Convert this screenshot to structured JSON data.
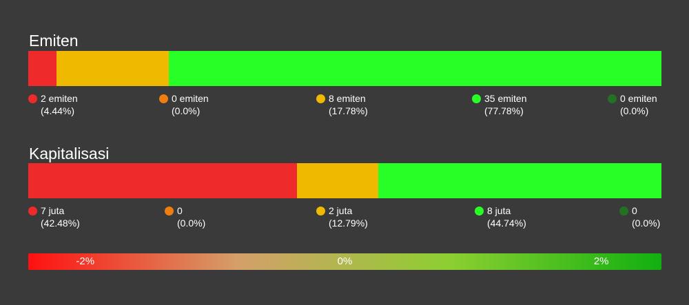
{
  "chart_data": [
    {
      "type": "bar",
      "orientation": "horizontal-stacked",
      "title": "Emiten",
      "segments": [
        {
          "label": "2 emiten",
          "percent_label": "(4.44%)",
          "value": 2,
          "percent": 4.44,
          "color": "#ee2a2a"
        },
        {
          "label": "0 emiten",
          "percent_label": "(0.0%)",
          "value": 0,
          "percent": 0.0,
          "color": "#f07d10"
        },
        {
          "label": "8 emiten",
          "percent_label": "(17.78%)",
          "value": 8,
          "percent": 17.78,
          "color": "#efb900"
        },
        {
          "label": "35 emiten",
          "percent_label": "(77.78%)",
          "value": 35,
          "percent": 77.78,
          "color": "#27ff27"
        },
        {
          "label": "0 emiten",
          "percent_label": "(0.0%)",
          "value": 0,
          "percent": 0.0,
          "color": "#237123"
        }
      ]
    },
    {
      "type": "bar",
      "orientation": "horizontal-stacked",
      "title": "Kapitalisasi",
      "segments": [
        {
          "label": "7 juta",
          "percent_label": "(42.48%)",
          "value": 7,
          "percent": 42.48,
          "color": "#ee2a2a"
        },
        {
          "label": "0",
          "percent_label": "(0.0%)",
          "value": 0,
          "percent": 0.0,
          "color": "#f07d10"
        },
        {
          "label": "2 juta",
          "percent_label": "(12.79%)",
          "value": 2,
          "percent": 12.79,
          "color": "#efb900"
        },
        {
          "label": "8 juta",
          "percent_label": "(44.74%)",
          "value": 8,
          "percent": 44.74,
          "color": "#27ff27"
        },
        {
          "label": "0",
          "percent_label": "(0.0%)",
          "value": 0,
          "percent": 0.0,
          "color": "#237123"
        }
      ]
    }
  ],
  "color_scale": {
    "labels": [
      "-2%",
      "0%",
      "2%"
    ],
    "stops": [
      "#ff1010",
      "#d4a06a",
      "#8ccf30",
      "#10b010"
    ]
  }
}
